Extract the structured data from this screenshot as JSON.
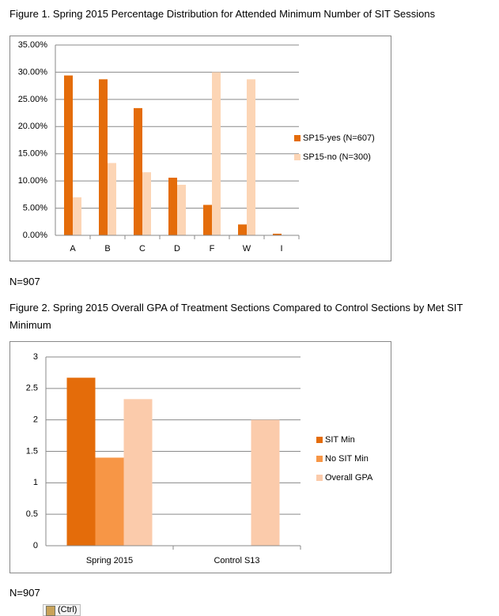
{
  "chart_data": [
    {
      "type": "bar",
      "title": "Figure 1. Spring 2015  Percentage Distribution for Attended Minimum Number of SIT Sessions",
      "categories": [
        "A",
        "B",
        "C",
        "D",
        "F",
        "W",
        "I"
      ],
      "series": [
        {
          "name": "SP15-yes (N=607)",
          "color": "#e46c0a",
          "values": [
            29.4,
            28.7,
            23.4,
            10.6,
            5.6,
            2.0,
            0.3
          ]
        },
        {
          "name": "SP15-no (N=300)",
          "color": "#fcd5b5",
          "values": [
            7.0,
            13.3,
            11.6,
            9.3,
            30.0,
            28.7,
            0
          ]
        }
      ],
      "ylim": [
        0,
        35
      ],
      "yticks": [
        {
          "value": 0,
          "label": "0.00%"
        },
        {
          "value": 5,
          "label": "5.00%"
        },
        {
          "value": 10,
          "label": "10.00%"
        },
        {
          "value": 15,
          "label": "15.00%"
        },
        {
          "value": 20,
          "label": "20.00%"
        },
        {
          "value": 25,
          "label": "25.00%"
        },
        {
          "value": 30,
          "label": "30.00%"
        },
        {
          "value": 35,
          "label": "35.00%"
        }
      ],
      "grid": true,
      "legend": "right",
      "note": "N=907"
    },
    {
      "type": "bar",
      "title": "Figure 2. Spring 2015  Overall GPA of Treatment Sections Compared to Control Sections by Met SIT Minimum",
      "categories": [
        "Spring 2015",
        "Control S13"
      ],
      "series": [
        {
          "name": "SIT Min",
          "color": "#e46c0a",
          "values": [
            2.67,
            null
          ]
        },
        {
          "name": "No SIT Min",
          "color": "#f79646",
          "values": [
            1.4,
            null
          ]
        },
        {
          "name": "Overall GPA",
          "color": "#fbcbab",
          "values": [
            2.33,
            2.0
          ]
        }
      ],
      "ylim": [
        0,
        3
      ],
      "yticks": [
        0,
        0.5,
        1,
        1.5,
        2,
        2.5,
        3
      ],
      "grid": true,
      "legend": "right",
      "note": "N=907"
    }
  ],
  "paste_button": "(Ctrl)"
}
